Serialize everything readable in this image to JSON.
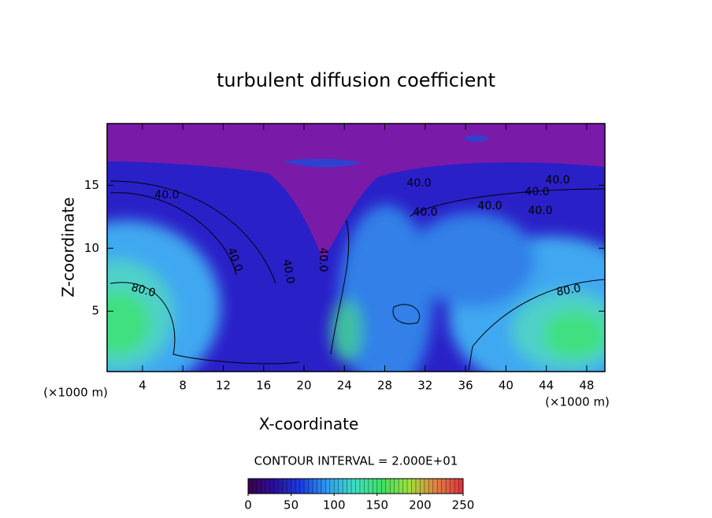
{
  "chart_data": {
    "type": "contour",
    "title": "turbulent diffusion coefficient",
    "xlabel": "X-coordinate",
    "ylabel": "Z-coordinate",
    "x_unit_labels": [
      "(×1000 m)",
      "(×1000 m)"
    ],
    "xlim": [
      0.5,
      49.8
    ],
    "ylim": [
      0.2,
      19.9
    ],
    "xticks": [
      4,
      8,
      12,
      16,
      20,
      24,
      28,
      32,
      36,
      40,
      44,
      48
    ],
    "yticks": [
      5,
      10,
      15
    ],
    "contour_interval_label": "CONTOUR INTERVAL = 2.000E+01",
    "contour_labels": [
      "40.0",
      "40.0",
      "40.0",
      "40.0",
      "40.0",
      "40.0",
      "40.0",
      "40.0",
      "40.0",
      "80.0",
      "80.0",
      "40.0"
    ],
    "colorbar": {
      "lim": [
        0,
        250
      ],
      "ticks": [
        0,
        50,
        100,
        150,
        200,
        250
      ],
      "colors": [
        "#3a0050",
        "#2a10a0",
        "#1a40e0",
        "#30a0f0",
        "#40e0c0",
        "#40e060",
        "#a0e040",
        "#e08040",
        "#e03040"
      ]
    }
  }
}
